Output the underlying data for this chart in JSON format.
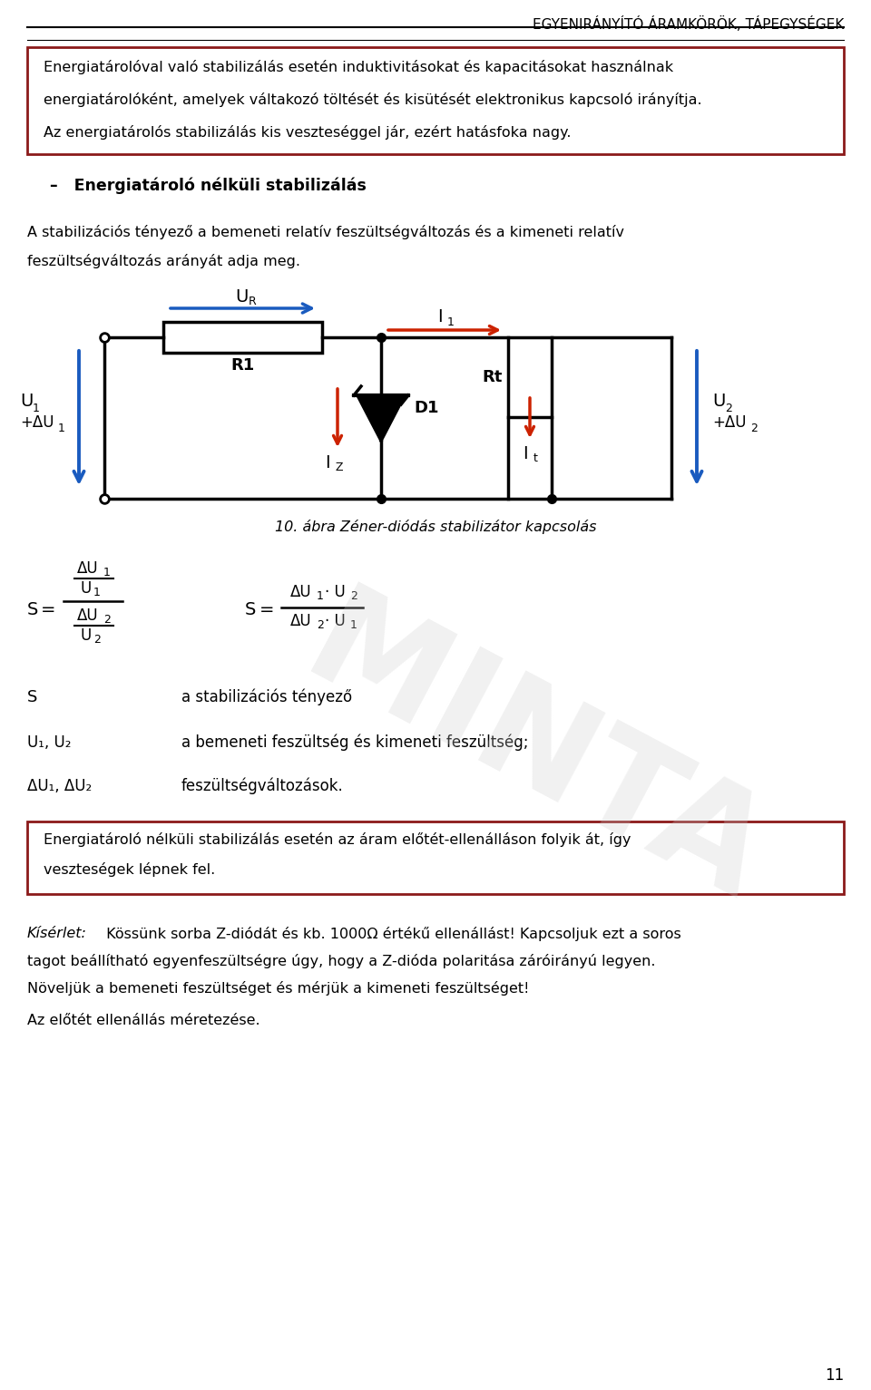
{
  "header": "EGYENIRÁNYÍTÓ ÁRAMKÖRÖK, TÁPEGYSÉGEK",
  "box1_lines": [
    "Energiatárolóval való stabilizálás esetén induktivitásokat és kapacitásokat használnak",
    "energiatárolóként, amelyek váltakozó töltését és kisütését elektronikus kapcsoló irányítja.",
    "Az energiatárolós stabilizálás kis veszteséggel jár, ezért hatásfoka nagy."
  ],
  "section_heading": "–   Energiatároló nélküli stabilizálás",
  "para1_lines": [
    "A stabilizációs tényező a bemeneti relatív feszültségváltozás és a kimeneti relatív",
    "feszültségváltozás arányát adja meg."
  ],
  "fig_caption": "10. ábra Zéner-diódás stabilizátor kapcsolás",
  "desc_S": "a stabilizációs tényező",
  "desc_U": "a bemeneti feszültség és kimeneti feszültség;",
  "desc_delta": "feszültségváltozások.",
  "box2_lines": [
    "Energiatároló nélküli stabilizálás esetén az áram előtét-ellenálláson folyik át, így",
    "veszteségek lépnek fel."
  ],
  "kiserlet_word": "Kísérlet:",
  "kiserlet_lines": [
    " Kössünk sorba Z-diódát és kb. 1000Ω értékű ellenállást! Kapcsoljuk ezt a soros",
    "tagot beállítható egyenfeszültségre úgy, hogy a Z-dióda polaritása záróirányú legyen.",
    "Növeljük a bemeneti feszültséget és mérjük a kimeneti feszültséget!"
  ],
  "last_text": "Az előtét ellenállás méretezése.",
  "page_num": "11",
  "bg_color": "#ffffff",
  "header_color": "#000000",
  "box_border_color": "#8b1a1a",
  "text_color": "#000000",
  "blue_color": "#1a5bbf",
  "red_color": "#cc2200",
  "watermark_color": "#cccccc"
}
